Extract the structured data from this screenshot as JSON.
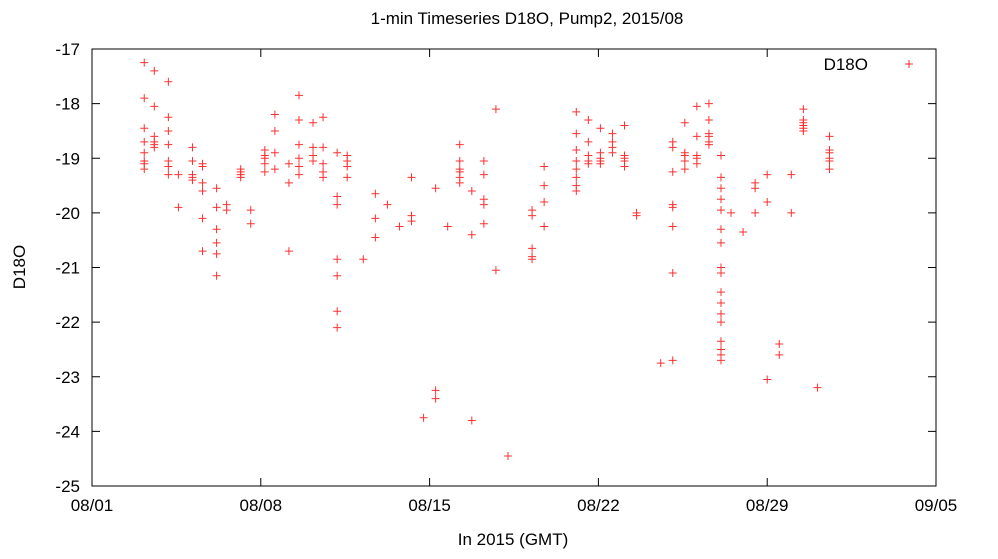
{
  "chart_data": {
    "type": "scatter",
    "title": "1-min Timeseries D18O, Pump2, 2015/08",
    "xlabel": "In 2015 (GMT)",
    "ylabel": "D18O",
    "x_type": "date",
    "xlim": [
      "2015-08-01",
      "2015-09-05"
    ],
    "ylim": [
      -25,
      -17
    ],
    "x_ticks": [
      "08/01",
      "08/08",
      "08/15",
      "08/22",
      "08/29",
      "09/05"
    ],
    "x_tick_dates": [
      "2015-08-01",
      "2015-08-08",
      "2015-08-15",
      "2015-08-22",
      "2015-08-29",
      "2015-09-05"
    ],
    "y_ticks": [
      -25,
      -24,
      -23,
      -22,
      -21,
      -20,
      -19,
      -18,
      -17
    ],
    "grid": false,
    "legend_position": "top-right",
    "marker": "plus",
    "color": "#ff3030",
    "series": [
      {
        "name": "D18O",
        "points": [
          [
            "2015-08-03 04:00",
            -17.25
          ],
          [
            "2015-08-03 04:00",
            -17.9
          ],
          [
            "2015-08-03 04:00",
            -18.45
          ],
          [
            "2015-08-03 04:00",
            -18.7
          ],
          [
            "2015-08-03 04:00",
            -18.9
          ],
          [
            "2015-08-03 04:00",
            -19.05
          ],
          [
            "2015-08-03 04:00",
            -19.1
          ],
          [
            "2015-08-03 04:00",
            -19.2
          ],
          [
            "2015-08-03 14:00",
            -17.4
          ],
          [
            "2015-08-03 14:00",
            -18.05
          ],
          [
            "2015-08-03 14:00",
            -18.6
          ],
          [
            "2015-08-03 14:00",
            -18.7
          ],
          [
            "2015-08-03 14:00",
            -18.75
          ],
          [
            "2015-08-03 14:00",
            -18.8
          ],
          [
            "2015-08-04 04:00",
            -17.6
          ],
          [
            "2015-08-04 04:00",
            -18.25
          ],
          [
            "2015-08-04 04:00",
            -18.5
          ],
          [
            "2015-08-04 04:00",
            -18.75
          ],
          [
            "2015-08-04 04:00",
            -19.05
          ],
          [
            "2015-08-04 04:00",
            -19.15
          ],
          [
            "2015-08-04 04:00",
            -19.3
          ],
          [
            "2015-08-04 14:00",
            -19.3
          ],
          [
            "2015-08-04 14:00",
            -19.9
          ],
          [
            "2015-08-05 04:00",
            -18.8
          ],
          [
            "2015-08-05 04:00",
            -19.05
          ],
          [
            "2015-08-05 04:00",
            -19.3
          ],
          [
            "2015-08-05 04:00",
            -19.35
          ],
          [
            "2015-08-05 04:00",
            -19.4
          ],
          [
            "2015-08-05 14:00",
            -19.1
          ],
          [
            "2015-08-05 14:00",
            -19.15
          ],
          [
            "2015-08-05 14:00",
            -19.45
          ],
          [
            "2015-08-05 14:00",
            -19.6
          ],
          [
            "2015-08-05 14:00",
            -20.1
          ],
          [
            "2015-08-05 14:00",
            -20.7
          ],
          [
            "2015-08-06 04:00",
            -19.55
          ],
          [
            "2015-08-06 04:00",
            -19.9
          ],
          [
            "2015-08-06 04:00",
            -20.3
          ],
          [
            "2015-08-06 04:00",
            -20.55
          ],
          [
            "2015-08-06 04:00",
            -20.75
          ],
          [
            "2015-08-06 04:00",
            -21.15
          ],
          [
            "2015-08-06 14:00",
            -19.85
          ],
          [
            "2015-08-06 14:00",
            -19.95
          ],
          [
            "2015-08-07 04:00",
            -19.2
          ],
          [
            "2015-08-07 04:00",
            -19.25
          ],
          [
            "2015-08-07 04:00",
            -19.3
          ],
          [
            "2015-08-07 04:00",
            -19.35
          ],
          [
            "2015-08-07 14:00",
            -19.95
          ],
          [
            "2015-08-07 14:00",
            -20.2
          ],
          [
            "2015-08-08 04:00",
            -18.85
          ],
          [
            "2015-08-08 04:00",
            -18.95
          ],
          [
            "2015-08-08 04:00",
            -19.0
          ],
          [
            "2015-08-08 04:00",
            -19.1
          ],
          [
            "2015-08-08 04:00",
            -19.25
          ],
          [
            "2015-08-08 14:00",
            -18.2
          ],
          [
            "2015-08-08 14:00",
            -18.5
          ],
          [
            "2015-08-08 14:00",
            -18.9
          ],
          [
            "2015-08-08 14:00",
            -19.2
          ],
          [
            "2015-08-09 04:00",
            -19.1
          ],
          [
            "2015-08-09 04:00",
            -19.45
          ],
          [
            "2015-08-09 04:00",
            -20.7
          ],
          [
            "2015-08-09 14:00",
            -17.85
          ],
          [
            "2015-08-09 14:00",
            -18.3
          ],
          [
            "2015-08-09 14:00",
            -18.75
          ],
          [
            "2015-08-09 14:00",
            -19.0
          ],
          [
            "2015-08-09 14:00",
            -19.15
          ],
          [
            "2015-08-09 14:00",
            -19.3
          ],
          [
            "2015-08-10 04:00",
            -18.35
          ],
          [
            "2015-08-10 04:00",
            -18.8
          ],
          [
            "2015-08-10 04:00",
            -18.95
          ],
          [
            "2015-08-10 04:00",
            -19.05
          ],
          [
            "2015-08-10 14:00",
            -18.25
          ],
          [
            "2015-08-10 14:00",
            -18.8
          ],
          [
            "2015-08-10 14:00",
            -19.1
          ],
          [
            "2015-08-10 14:00",
            -19.25
          ],
          [
            "2015-08-10 14:00",
            -19.35
          ],
          [
            "2015-08-11 04:00",
            -18.9
          ],
          [
            "2015-08-11 04:00",
            -19.7
          ],
          [
            "2015-08-11 04:00",
            -19.85
          ],
          [
            "2015-08-11 04:00",
            -20.85
          ],
          [
            "2015-08-11 04:00",
            -21.15
          ],
          [
            "2015-08-11 04:00",
            -21.8
          ],
          [
            "2015-08-11 04:00",
            -22.1
          ],
          [
            "2015-08-11 14:00",
            -18.95
          ],
          [
            "2015-08-11 14:00",
            -19.05
          ],
          [
            "2015-08-11 14:00",
            -19.15
          ],
          [
            "2015-08-11 14:00",
            -19.35
          ],
          [
            "2015-08-12 06:00",
            -20.85
          ],
          [
            "2015-08-12 18:00",
            -19.65
          ],
          [
            "2015-08-12 18:00",
            -20.1
          ],
          [
            "2015-08-12 18:00",
            -20.45
          ],
          [
            "2015-08-13 06:00",
            -19.85
          ],
          [
            "2015-08-13 18:00",
            -20.25
          ],
          [
            "2015-08-14 06:00",
            -19.35
          ],
          [
            "2015-08-14 06:00",
            -20.05
          ],
          [
            "2015-08-14 06:00",
            -20.15
          ],
          [
            "2015-08-14 18:00",
            -23.75
          ],
          [
            "2015-08-15 06:00",
            -19.55
          ],
          [
            "2015-08-15 06:00",
            -23.25
          ],
          [
            "2015-08-15 06:00",
            -23.4
          ],
          [
            "2015-08-15 18:00",
            -20.25
          ],
          [
            "2015-08-16 06:00",
            -18.75
          ],
          [
            "2015-08-16 06:00",
            -19.05
          ],
          [
            "2015-08-16 06:00",
            -19.2
          ],
          [
            "2015-08-16 06:00",
            -19.25
          ],
          [
            "2015-08-16 06:00",
            -19.35
          ],
          [
            "2015-08-16 06:00",
            -19.45
          ],
          [
            "2015-08-16 18:00",
            -19.6
          ],
          [
            "2015-08-16 18:00",
            -20.4
          ],
          [
            "2015-08-16 18:00",
            -23.8
          ],
          [
            "2015-08-17 06:00",
            -19.05
          ],
          [
            "2015-08-17 06:00",
            -19.3
          ],
          [
            "2015-08-17 06:00",
            -19.75
          ],
          [
            "2015-08-17 06:00",
            -19.85
          ],
          [
            "2015-08-17 06:00",
            -20.2
          ],
          [
            "2015-08-17 18:00",
            -18.1
          ],
          [
            "2015-08-17 18:00",
            -21.05
          ],
          [
            "2015-08-18 06:00",
            -24.45
          ],
          [
            "2015-08-19 06:00",
            -19.95
          ],
          [
            "2015-08-19 06:00",
            -20.05
          ],
          [
            "2015-08-19 06:00",
            -20.65
          ],
          [
            "2015-08-19 06:00",
            -20.8
          ],
          [
            "2015-08-19 06:00",
            -20.85
          ],
          [
            "2015-08-19 18:00",
            -19.15
          ],
          [
            "2015-08-19 18:00",
            -19.5
          ],
          [
            "2015-08-19 18:00",
            -19.8
          ],
          [
            "2015-08-19 18:00",
            -20.25
          ],
          [
            "2015-08-21 02:00",
            -18.15
          ],
          [
            "2015-08-21 02:00",
            -18.55
          ],
          [
            "2015-08-21 02:00",
            -18.85
          ],
          [
            "2015-08-21 02:00",
            -19.05
          ],
          [
            "2015-08-21 02:00",
            -19.2
          ],
          [
            "2015-08-21 02:00",
            -19.35
          ],
          [
            "2015-08-21 02:00",
            -19.5
          ],
          [
            "2015-08-21 02:00",
            -19.6
          ],
          [
            "2015-08-21 14:00",
            -18.3
          ],
          [
            "2015-08-21 14:00",
            -18.7
          ],
          [
            "2015-08-21 14:00",
            -18.95
          ],
          [
            "2015-08-21 14:00",
            -19.05
          ],
          [
            "2015-08-21 14:00",
            -19.1
          ],
          [
            "2015-08-22 02:00",
            -18.45
          ],
          [
            "2015-08-22 02:00",
            -18.9
          ],
          [
            "2015-08-22 02:00",
            -19.0
          ],
          [
            "2015-08-22 02:00",
            -19.05
          ],
          [
            "2015-08-22 02:00",
            -19.1
          ],
          [
            "2015-08-22 14:00",
            -18.55
          ],
          [
            "2015-08-22 14:00",
            -18.7
          ],
          [
            "2015-08-22 14:00",
            -18.8
          ],
          [
            "2015-08-22 14:00",
            -18.9
          ],
          [
            "2015-08-23 02:00",
            -18.4
          ],
          [
            "2015-08-23 02:00",
            -18.95
          ],
          [
            "2015-08-23 02:00",
            -19.0
          ],
          [
            "2015-08-23 02:00",
            -19.05
          ],
          [
            "2015-08-23 02:00",
            -19.15
          ],
          [
            "2015-08-23 14:00",
            -20.0
          ],
          [
            "2015-08-23 14:00",
            -20.05
          ],
          [
            "2015-08-24 14:00",
            -22.75
          ],
          [
            "2015-08-25 02:00",
            -18.7
          ],
          [
            "2015-08-25 02:00",
            -18.8
          ],
          [
            "2015-08-25 02:00",
            -19.25
          ],
          [
            "2015-08-25 02:00",
            -19.85
          ],
          [
            "2015-08-25 02:00",
            -19.9
          ],
          [
            "2015-08-25 02:00",
            -20.25
          ],
          [
            "2015-08-25 02:00",
            -21.1
          ],
          [
            "2015-08-25 02:00",
            -22.7
          ],
          [
            "2015-08-25 14:00",
            -18.35
          ],
          [
            "2015-08-25 14:00",
            -18.9
          ],
          [
            "2015-08-25 14:00",
            -18.95
          ],
          [
            "2015-08-25 14:00",
            -19.05
          ],
          [
            "2015-08-25 14:00",
            -19.2
          ],
          [
            "2015-08-26 02:00",
            -18.05
          ],
          [
            "2015-08-26 02:00",
            -18.6
          ],
          [
            "2015-08-26 02:00",
            -18.95
          ],
          [
            "2015-08-26 02:00",
            -19.0
          ],
          [
            "2015-08-26 02:00",
            -19.1
          ],
          [
            "2015-08-26 14:00",
            -18.0
          ],
          [
            "2015-08-26 14:00",
            -18.3
          ],
          [
            "2015-08-26 14:00",
            -18.55
          ],
          [
            "2015-08-26 14:00",
            -18.6
          ],
          [
            "2015-08-26 14:00",
            -18.7
          ],
          [
            "2015-08-26 14:00",
            -18.75
          ],
          [
            "2015-08-27 02:00",
            -18.95
          ],
          [
            "2015-08-27 02:00",
            -19.35
          ],
          [
            "2015-08-27 02:00",
            -19.55
          ],
          [
            "2015-08-27 02:00",
            -19.75
          ],
          [
            "2015-08-27 02:00",
            -19.95
          ],
          [
            "2015-08-27 02:00",
            -20.3
          ],
          [
            "2015-08-27 02:00",
            -20.55
          ],
          [
            "2015-08-27 02:00",
            -21.0
          ],
          [
            "2015-08-27 02:00",
            -21.1
          ],
          [
            "2015-08-27 02:00",
            -21.45
          ],
          [
            "2015-08-27 02:00",
            -21.65
          ],
          [
            "2015-08-27 02:00",
            -21.85
          ],
          [
            "2015-08-27 02:00",
            -22.0
          ],
          [
            "2015-08-27 02:00",
            -22.35
          ],
          [
            "2015-08-27 02:00",
            -22.5
          ],
          [
            "2015-08-27 02:00",
            -22.6
          ],
          [
            "2015-08-27 02:00",
            -22.7
          ],
          [
            "2015-08-27 12:00",
            -20.0
          ],
          [
            "2015-08-28 00:00",
            -20.35
          ],
          [
            "2015-08-28 12:00",
            -19.45
          ],
          [
            "2015-08-28 12:00",
            -19.55
          ],
          [
            "2015-08-28 12:00",
            -20.0
          ],
          [
            "2015-08-29 00:00",
            -19.3
          ],
          [
            "2015-08-29 00:00",
            -19.8
          ],
          [
            "2015-08-29 00:00",
            -23.05
          ],
          [
            "2015-08-29 12:00",
            -22.4
          ],
          [
            "2015-08-29 12:00",
            -22.6
          ],
          [
            "2015-08-30 00:00",
            -19.3
          ],
          [
            "2015-08-30 00:00",
            -20.0
          ],
          [
            "2015-08-30 12:00",
            -18.1
          ],
          [
            "2015-08-30 12:00",
            -18.3
          ],
          [
            "2015-08-30 12:00",
            -18.35
          ],
          [
            "2015-08-30 12:00",
            -18.4
          ],
          [
            "2015-08-30 12:00",
            -18.45
          ],
          [
            "2015-08-30 12:00",
            -18.5
          ],
          [
            "2015-08-31 02:00",
            -23.2
          ],
          [
            "2015-08-31 14:00",
            -18.6
          ],
          [
            "2015-08-31 14:00",
            -18.85
          ],
          [
            "2015-08-31 14:00",
            -18.9
          ],
          [
            "2015-08-31 14:00",
            -19.0
          ],
          [
            "2015-08-31 14:00",
            -19.05
          ],
          [
            "2015-08-31 14:00",
            -19.2
          ]
        ]
      }
    ]
  }
}
